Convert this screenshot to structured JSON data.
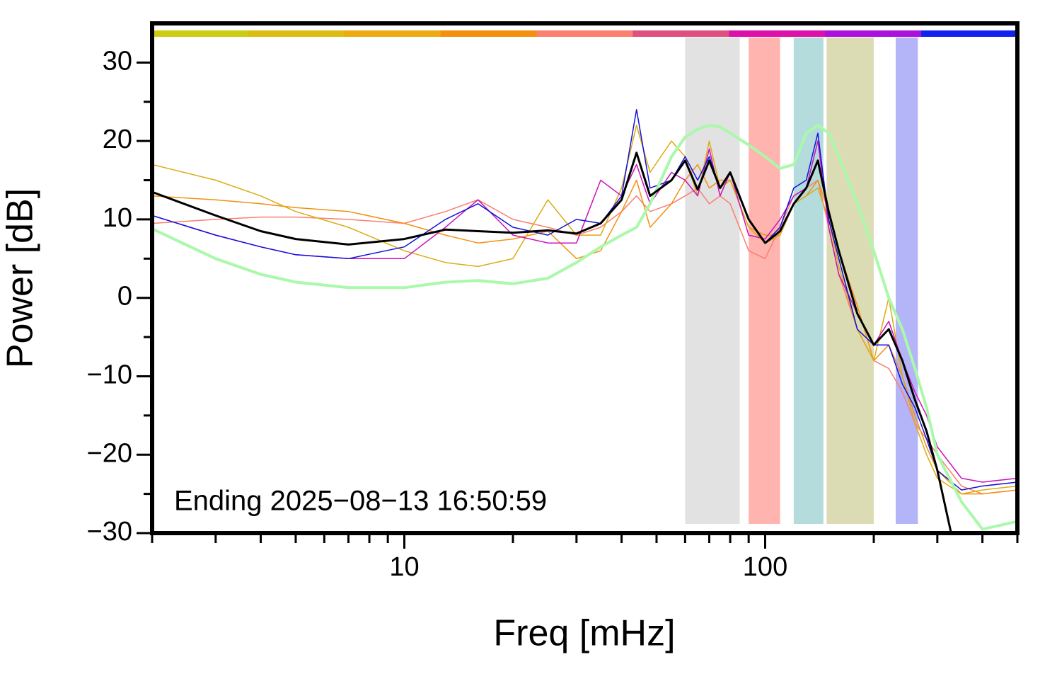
{
  "chart_data": {
    "type": "line",
    "log_x": true,
    "xlabel": "Freq [mHz]",
    "ylabel": "Power [dB]",
    "annotation": "Ending 2025−08−13 16:50:59",
    "xlim": [
      2,
      500
    ],
    "ylim": [
      -30,
      35
    ],
    "xticks": [
      10,
      100
    ],
    "x_minor_ticks": [
      2,
      3,
      4,
      5,
      6,
      7,
      8,
      9,
      20,
      30,
      40,
      50,
      60,
      70,
      80,
      90,
      200,
      300,
      400,
      500
    ],
    "yticks": [
      {
        "value": -30,
        "label": "−30"
      },
      {
        "value": -20,
        "label": "−20"
      },
      {
        "value": -10,
        "label": "−10"
      },
      0,
      10,
      20,
      30
    ],
    "y_minor_ticks": [
      -25,
      -15,
      -5,
      5,
      15,
      25
    ],
    "top_bar_colors": [
      "#cccc11",
      "#ddbb11",
      "#eeaa11",
      "#f39010",
      "#fa8070",
      "#dd5080",
      "#dd11aa",
      "#aa11dd",
      "#1122ee"
    ],
    "bands": [
      {
        "from": 60,
        "to": 85,
        "color": "#e2e2e2"
      },
      {
        "from": 90,
        "to": 110,
        "color": "#ffb4b0"
      },
      {
        "from": 120,
        "to": 145,
        "color": "#b4dcdc"
      },
      {
        "from": 148,
        "to": 200,
        "color": "#dcdcb4"
      },
      {
        "from": 230,
        "to": 265,
        "color": "#b4b4f8"
      }
    ],
    "x": [
      2,
      3,
      4,
      5,
      7,
      10,
      13,
      16,
      20,
      25,
      30,
      35,
      40,
      44,
      48,
      55,
      60,
      65,
      70,
      75,
      80,
      90,
      100,
      110,
      120,
      130,
      140,
      150,
      160,
      180,
      200,
      220,
      240,
      260,
      280,
      300,
      350,
      400,
      500
    ],
    "series": [
      {
        "color": "#fa7f70",
        "width": 1.5,
        "values": [
          9.5,
          10,
          10.3,
          10.3,
          10,
          9.5,
          11,
          12.5,
          10,
          9,
          8,
          9,
          11,
          13,
          11,
          12,
          13,
          14,
          12,
          13,
          12,
          6,
          5,
          9,
          13,
          14,
          15,
          9,
          3,
          -4,
          -8,
          -9,
          -12,
          -16,
          -18,
          -20,
          -24,
          -25,
          -24.5
        ]
      },
      {
        "color": "#f39010",
        "width": 1.5,
        "values": [
          13,
          12.5,
          12,
          11.5,
          11,
          9.5,
          8,
          7,
          7.5,
          8.5,
          5,
          6,
          11,
          15,
          9,
          12,
          15,
          17,
          14,
          15,
          15,
          9,
          8,
          8,
          12,
          13,
          15,
          11,
          6,
          -1,
          -8,
          -6,
          -10,
          -15,
          -19,
          -22,
          -25,
          -25,
          -24.5
        ]
      },
      {
        "color": "#ddaa11",
        "width": 1.5,
        "values": [
          17,
          15,
          13,
          11,
          9,
          6,
          4.5,
          4,
          5,
          12.5,
          8,
          8,
          14,
          22,
          16,
          20,
          18,
          13,
          20,
          14,
          15,
          9,
          7,
          8,
          12,
          13,
          14,
          10,
          4,
          -4,
          -8,
          0,
          -10,
          -16,
          -20,
          -23,
          -25,
          -24.5,
          -24
        ]
      },
      {
        "color": "#cc11bb",
        "width": 1.5,
        "values": [
          10.5,
          8,
          6.5,
          5.5,
          5,
          5,
          9,
          12.5,
          8,
          7,
          7,
          15,
          13,
          17,
          12,
          16,
          15,
          13,
          19,
          13,
          16,
          8,
          7.5,
          10,
          13,
          14,
          20,
          9,
          3,
          -2,
          -6,
          -3,
          -8,
          -12,
          -15,
          -19,
          -23,
          -23.5,
          -23
        ]
      },
      {
        "color": "#1111dd",
        "width": 1.5,
        "values": [
          10.5,
          8,
          6.5,
          5.5,
          5,
          6.5,
          10,
          12,
          9,
          8,
          10,
          9.5,
          13,
          24,
          14,
          15,
          18,
          15,
          18,
          14,
          16,
          10,
          7,
          9,
          14,
          15,
          21,
          10,
          5,
          -4,
          -6,
          -6,
          -11,
          -14,
          -18,
          -22,
          -24.5,
          -24,
          -23.5
        ]
      },
      {
        "color": "#aaf8aa",
        "width": 4,
        "values": [
          8.8,
          5,
          3,
          2,
          1.3,
          1.3,
          2,
          2.2,
          1.8,
          2.5,
          4.5,
          6.5,
          8,
          9,
          12,
          18,
          20.5,
          21.5,
          22,
          21.8,
          21,
          19.5,
          18,
          16.5,
          17,
          21,
          22,
          21,
          18,
          12,
          6,
          0,
          -4,
          -9,
          -14,
          -20,
          -26,
          -29.5,
          -28.5
        ]
      },
      {
        "color": "#000000",
        "width": 3,
        "values": [
          13.5,
          10.5,
          8.5,
          7.5,
          6.8,
          7.5,
          8.7,
          8.5,
          8.3,
          8.6,
          8.2,
          9.5,
          12.5,
          18.5,
          13,
          15,
          17.5,
          13.8,
          17.5,
          14,
          16,
          10,
          7,
          8.5,
          12,
          14,
          17.5,
          11,
          6,
          -2,
          -6,
          -4,
          -8,
          -13,
          -17,
          -22,
          -36,
          null,
          null
        ]
      }
    ]
  }
}
